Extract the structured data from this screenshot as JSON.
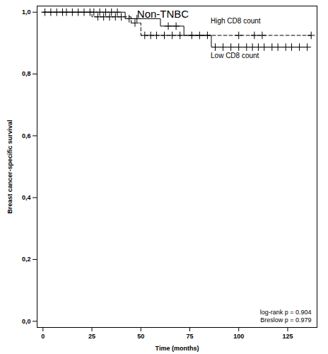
{
  "chart_data": {
    "type": "kaplan-meier",
    "title": "Non-TNBC",
    "x_label": "Time (months)",
    "y_label": "Breast cancer-specific survival",
    "xlim": [
      -3,
      140
    ],
    "xticks": [
      0,
      25,
      50,
      75,
      100,
      125
    ],
    "ylim": [
      -0.02,
      1.02
    ],
    "yticks": [
      {
        "value": 0,
        "label": "0,0"
      },
      {
        "value": 0.2,
        "label": "0,2"
      },
      {
        "value": 0.4,
        "label": "0,4"
      },
      {
        "value": 0.6,
        "label": "0,6"
      },
      {
        "value": 0.8,
        "label": "0,8"
      },
      {
        "value": 1,
        "label": "1,0"
      }
    ],
    "grid": false,
    "annotations": [
      "log-rank p = 0.904",
      "Breslow p = 0.979"
    ],
    "series": [
      {
        "name": "High CD8 count",
        "color": "#000000",
        "line_style": "dashed",
        "marker": "plus",
        "x": [
          0,
          25,
          45,
          50,
          137
        ],
        "values": [
          1,
          0.985,
          0.965,
          0.925,
          0.925
        ],
        "censored": [
          4,
          10,
          15,
          24,
          28,
          31,
          34,
          37,
          40,
          47,
          52,
          55,
          58,
          62,
          66,
          70,
          76,
          84,
          100,
          108,
          112,
          137
        ]
      },
      {
        "name": "Low CD8 count",
        "color": "#000000",
        "line_style": "solid",
        "marker": "plus",
        "x": [
          0,
          42,
          60,
          72,
          86,
          135
        ],
        "values": [
          1,
          0.979,
          0.955,
          0.925,
          0.887,
          0.887
        ],
        "censored": [
          1,
          7,
          12,
          18,
          21,
          26,
          29,
          32,
          35,
          38,
          44,
          48,
          64,
          68,
          80,
          88,
          92,
          96,
          100,
          104,
          107,
          110,
          113,
          117,
          120,
          124,
          127,
          131,
          135
        ]
      }
    ]
  }
}
